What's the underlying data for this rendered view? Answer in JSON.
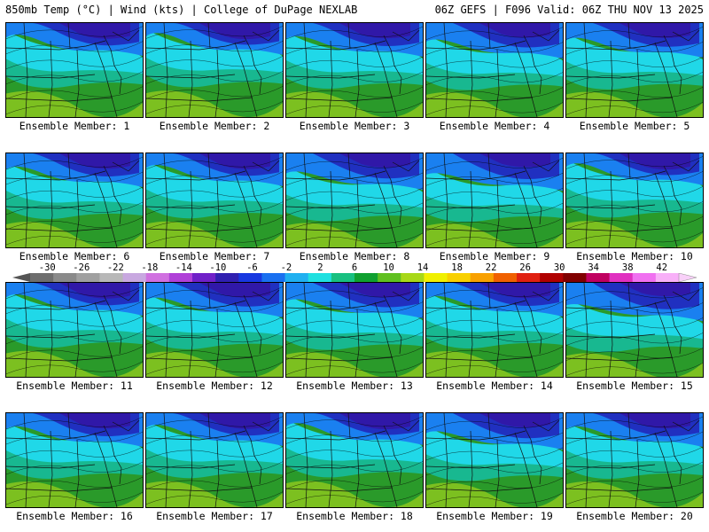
{
  "header": {
    "left": "850mb Temp (°C) | Wind (kts) | College of DuPage NEXLAB",
    "right": "06Z GEFS | F096 Valid: 06Z THU NOV 13 2025"
  },
  "members": [
    {
      "label": "Ensemble Member: 1",
      "cold": 0.55
    },
    {
      "label": "Ensemble Member: 2",
      "cold": 0.6
    },
    {
      "label": "Ensemble Member: 3",
      "cold": 0.5
    },
    {
      "label": "Ensemble Member: 4",
      "cold": 0.4
    },
    {
      "label": "Ensemble Member: 5",
      "cold": 0.45
    },
    {
      "label": "Ensemble Member: 6",
      "cold": 0.5
    },
    {
      "label": "Ensemble Member: 7",
      "cold": 0.55
    },
    {
      "label": "Ensemble Member: 8",
      "cold": 0.35
    },
    {
      "label": "Ensemble Member: 9",
      "cold": 0.3
    },
    {
      "label": "Ensemble Member: 10",
      "cold": 0.6
    },
    {
      "label": "Ensemble Member: 11",
      "cold": 0.55
    },
    {
      "label": "Ensemble Member: 12",
      "cold": 0.45
    },
    {
      "label": "Ensemble Member: 13",
      "cold": 0.4
    },
    {
      "label": "Ensemble Member: 14",
      "cold": 0.5
    },
    {
      "label": "Ensemble Member: 15",
      "cold": 0.25
    },
    {
      "label": "Ensemble Member: 16",
      "cold": 0.5
    },
    {
      "label": "Ensemble Member: 17",
      "cold": 0.55
    },
    {
      "label": "Ensemble Member: 18",
      "cold": 0.6
    },
    {
      "label": "Ensemble Member: 19",
      "cold": 0.35
    },
    {
      "label": "Ensemble Member: 20",
      "cold": 0.5
    }
  ],
  "colorbar": {
    "labels": [
      "-30",
      "-26",
      "-22",
      "-18",
      "-14",
      "-10",
      "-6",
      "-2",
      "2",
      "6",
      "10",
      "14",
      "18",
      "22",
      "26",
      "30",
      "34",
      "38",
      "42"
    ],
    "colors": [
      "#6e6e6e",
      "#8a8a8a",
      "#a0a0a0",
      "#b8b8b8",
      "#c8a8e0",
      "#d070e0",
      "#b040d8",
      "#7020c8",
      "#3020b0",
      "#1838e0",
      "#1a70f0",
      "#20b0f0",
      "#20e0e0",
      "#18c080",
      "#10a030",
      "#60c020",
      "#a8d818",
      "#f0f000",
      "#f8d000",
      "#f8a000",
      "#f06000",
      "#e02010",
      "#b00000",
      "#800000",
      "#c00060",
      "#e030c0",
      "#f070f0",
      "#f8b0f8"
    ]
  }
}
